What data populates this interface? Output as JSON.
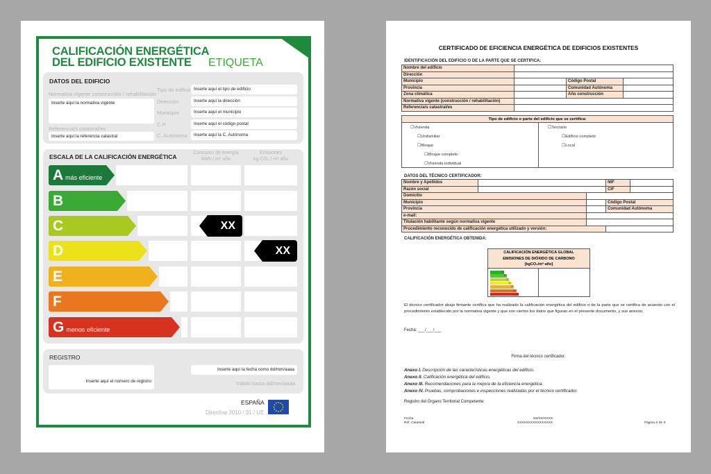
{
  "label": {
    "title_line1": "CALIFICACIÓN ENERGÉTICA",
    "title_line2": "DEL EDIFICIO EXISTENTE",
    "subtitle": "ETIQUETA",
    "datos": {
      "heading": "DATOS DEL EDIFICIO",
      "normativa_label": "Normativa vigente construcción / rehabilitación",
      "normativa_value": "Inserte aquí la normativa vigente",
      "referencia_label": "Referencia/s catastral/es",
      "referencia_value": "Inserte aquí la referencia catastral",
      "fields": [
        {
          "label": "Tipo de edificio",
          "value": "Inserte aquí el tipo de edificio"
        },
        {
          "label": "Dirección",
          "value": "Inserte aquí la dirección"
        },
        {
          "label": "Municipio",
          "value": "Inserte aquí el municipio"
        },
        {
          "label": "C.P.",
          "value": "Inserte aquí el código postal"
        },
        {
          "label": "C. Autónoma",
          "value": "Inserte aquí la C. Autónoma"
        }
      ]
    },
    "escala": {
      "heading": "ESCALA DE LA CALIFICACIÓN ENERGÉTICA",
      "col1_line1": "Consumo de energía",
      "col1_line2": "kWh / m² año",
      "col2_line1": "Emisiones",
      "col2_line2": "kg CO₂ / m² año",
      "ratings": [
        {
          "letter": "A",
          "note": "más eficiente",
          "color": "#1b7a3a"
        },
        {
          "letter": "B",
          "note": "",
          "color": "#3aa935"
        },
        {
          "letter": "C",
          "note": "",
          "color": "#a8c920"
        },
        {
          "letter": "D",
          "note": "",
          "color": "#ece21a"
        },
        {
          "letter": "E",
          "note": "",
          "color": "#f0b21c"
        },
        {
          "letter": "F",
          "note": "",
          "color": "#e8771d"
        },
        {
          "letter": "G",
          "note": "menos eficiente",
          "color": "#d7321f"
        }
      ],
      "consumo": {
        "rating": "C",
        "value": "XX"
      },
      "emisiones": {
        "rating": "D",
        "value": "XX"
      }
    },
    "registro": {
      "heading": "REGISTRO",
      "numero": "Inserte aquí el número de registro",
      "fecha": "Inserte aquí la fecha como dd/mm/aaaa",
      "valido": "Válido hasta dd/mm/aaaa"
    },
    "footer": {
      "country": "ESPAÑA",
      "directive": "Directiva 2010 / 31 / UE"
    }
  },
  "certificate": {
    "title": "CERTIFICADO DE EFICIENCIA ENERGÉTICA DE EDIFICIOS EXISTENTES",
    "identificacion": {
      "heading": "IDENTIFICACIÓN DEL EDIFICIO O DE LA PARTE QUE SE CERTIFICA:",
      "rows": [
        "Nombre del edificio",
        "Dirección",
        "Municipio",
        "Provincia",
        "Zona climática",
        "Normativa vigente (construcción / rehabilitación)",
        "Referencia/s catastral/es"
      ],
      "side": [
        "Código Postal",
        "Comunidad Autónoma",
        "Año construcción"
      ]
    },
    "tipo": {
      "heading": "Tipo de edificio o parte del edificio que se certifica:",
      "left": [
        "Vivienda",
        "Unifamiliar",
        "Bloque",
        "Bloque completo",
        "Vivienda individual"
      ],
      "right": [
        "Terciario",
        "Edificio completo",
        "Local"
      ]
    },
    "tecnico": {
      "heading": "DATOS DEL TÉCNICO CERTIFICADOR:",
      "rows": [
        "Nombre y Apellidos",
        "Razón social",
        "Domicilio",
        "Municipio",
        "Provincia",
        "e-mail:",
        "Titulación habilitante según normativa vigente",
        "Procedimiento reconocido de calificación energética  utilizado y versión:"
      ],
      "side": [
        "NIF",
        "CIF",
        "Código Postal",
        "Comunidad Autónoma"
      ]
    },
    "calificacion": {
      "heading": "CALIFICACIÓN ENERGÉTICA OBTENIDA:",
      "box_line1": "CALIFICACIÓN ENERGÉTICA GLOBAL",
      "box_line2": "EMISIONES DE DIÓXIDO DE CARBONO",
      "box_line3": "[kgCO₂/m²·año]",
      "letters": [
        "A",
        "B",
        "C",
        "D",
        "E",
        "F",
        "G"
      ],
      "colors": [
        "#22b722",
        "#5cc526",
        "#b6d82a",
        "#f2ec1f",
        "#f3b11c",
        "#ea6a1c",
        "#e0221f"
      ]
    },
    "declaration": "El técnico certificador abajo firmante certifica que ha realizado la calificación energética del edificio o de la parte que se certifica de acuerdo con el procedimiento establecido por la normativa vigente y que son ciertos los datos que figuran en el presente documento, y sus anexos:",
    "fecha": "Fecha: ___/___/___",
    "firma": "Firma del técnico certificador:",
    "anexos": [
      {
        "label": "Anexo I.",
        "text": "Descripción de las características energéticas del edificio."
      },
      {
        "label": "Anexo II.",
        "text": "Calificación energética del edificio."
      },
      {
        "label": "Anexo III.",
        "text": "Recomendaciones para la mejora de la eficiencia energética."
      },
      {
        "label": "Anexo IV.",
        "text": "Pruebas, comprobaciones e inspecciones realizadas por el técnico certificador."
      }
    ],
    "registro": "Registro del Órgano Territorial Competente:",
    "footer": {
      "fecha_label": "Fecha",
      "fecha_value": "XX/XX/XXXX",
      "ref_label": "Ref. Catastral",
      "ref_value": "XXXXXXXXXXXXXXXX",
      "page": "Página X de X"
    }
  }
}
